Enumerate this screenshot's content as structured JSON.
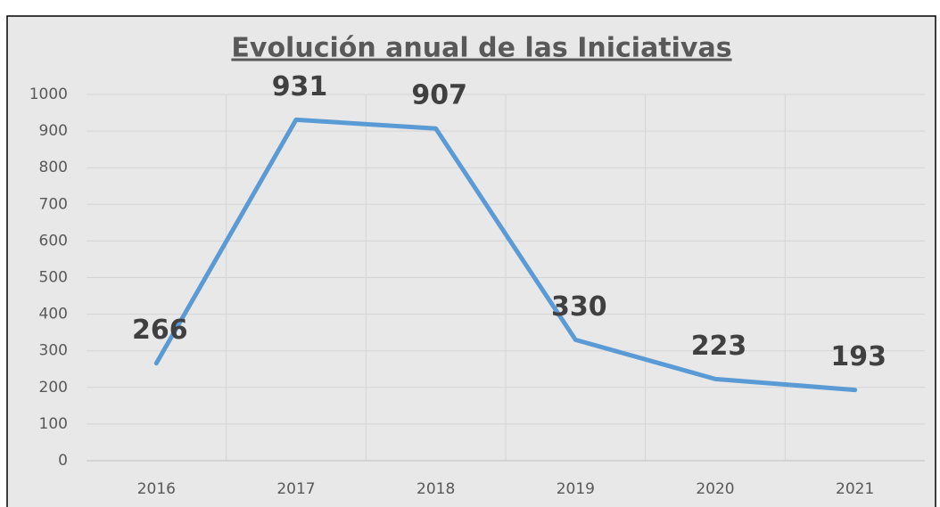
{
  "chart_data": {
    "type": "line",
    "title": "Evolución anual de las Iniciativas",
    "categories": [
      "2016",
      "2017",
      "2018",
      "2019",
      "2020",
      "2021"
    ],
    "values": [
      266,
      931,
      907,
      330,
      223,
      193
    ],
    "color": "#5b9bd5",
    "ylim": [
      0,
      1000
    ],
    "yticks": [
      0,
      100,
      200,
      300,
      400,
      500,
      600,
      700,
      800,
      900,
      1000
    ],
    "grid": true
  }
}
